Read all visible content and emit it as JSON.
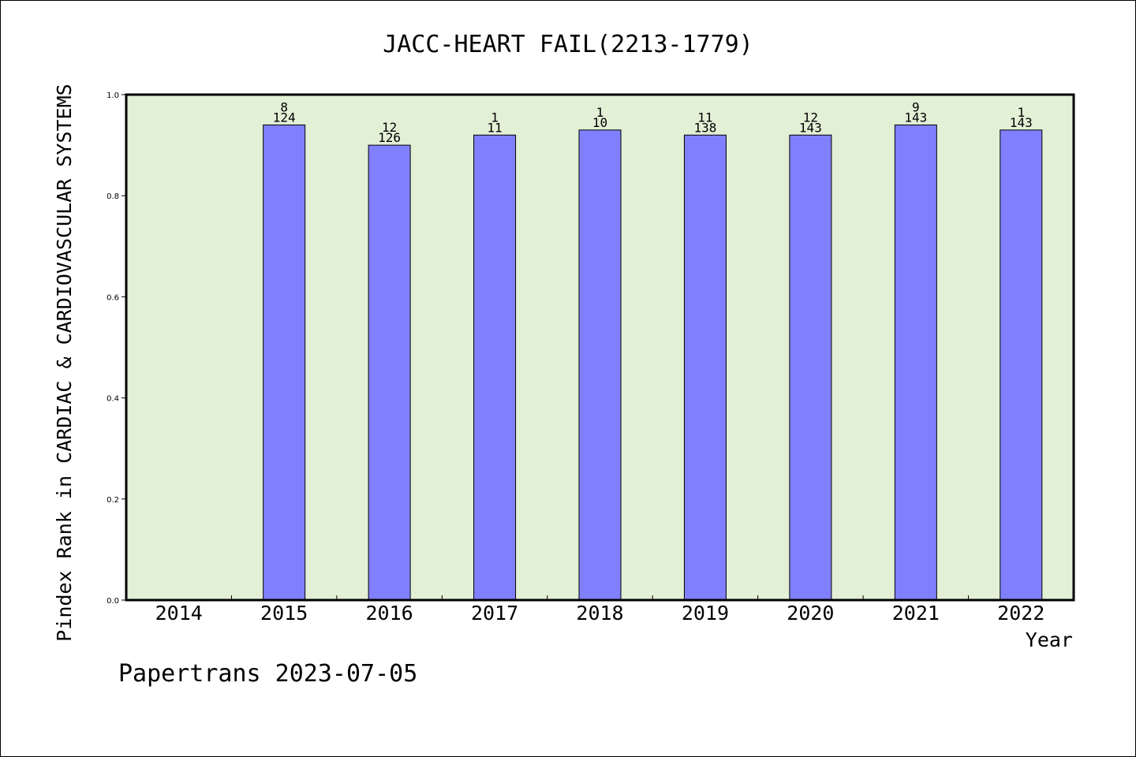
{
  "chart_data": {
    "type": "bar",
    "title": "JACC-HEART FAIL(2213-1779)",
    "xlabel": "Year",
    "ylabel": "Pindex Rank in CARDIAC & CARDIOVASCULAR SYSTEMS",
    "categories": [
      "2014",
      "2015",
      "2016",
      "2017",
      "2018",
      "2019",
      "2020",
      "2021",
      "2022"
    ],
    "values": [
      null,
      0.94,
      0.9,
      0.92,
      0.93,
      0.92,
      0.92,
      0.94,
      0.93
    ],
    "bar_labels_top": [
      "",
      "8",
      "12",
      "1",
      "1",
      "11",
      "12",
      "9",
      "1"
    ],
    "bar_labels_bottom": [
      "",
      "124",
      "126",
      "11",
      "10",
      "138",
      "143",
      "143",
      "143"
    ],
    "ylim": [
      0,
      1.0
    ],
    "yticks": [
      "0.0",
      "0.2",
      "0.4",
      "0.6",
      "0.8",
      "1.0"
    ],
    "grid": false,
    "colors": {
      "bar": "#8080ff",
      "plot_background": "#e2f0d6",
      "axis": "#000000"
    }
  },
  "footer": {
    "text": "Papertrans 2023-07-05"
  }
}
